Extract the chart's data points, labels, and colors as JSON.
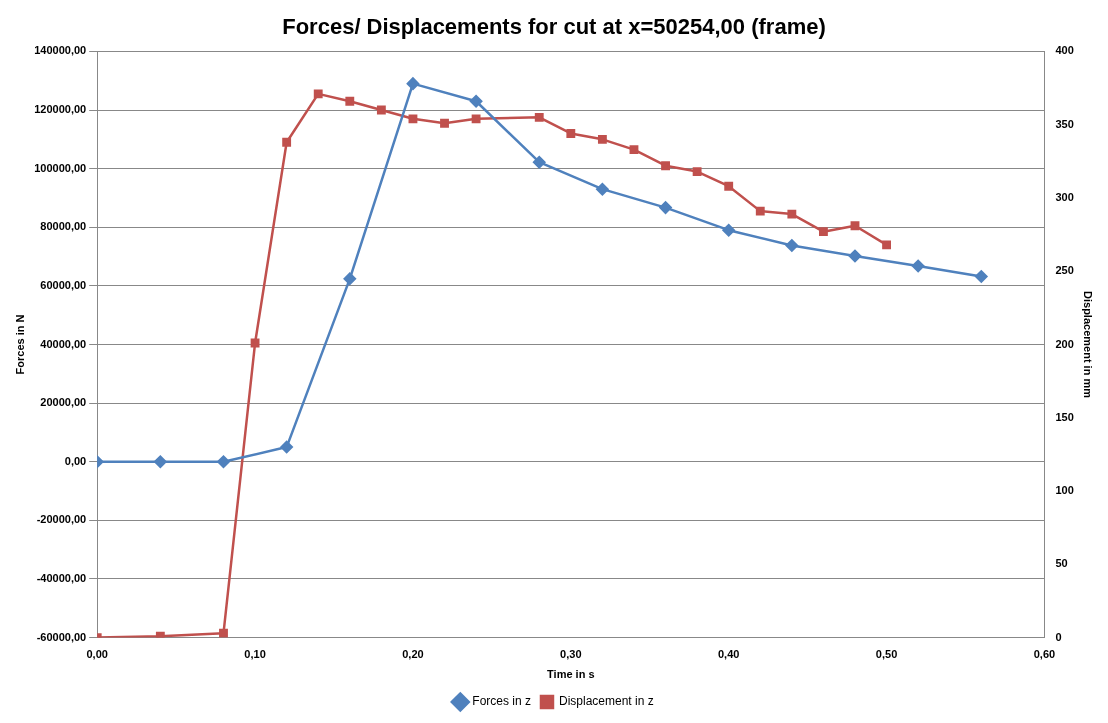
{
  "chart_data": {
    "type": "line",
    "title": "Forces/ Displacements for cut at x=50254,00 (frame)",
    "xlabel": "Time in s",
    "ylabel": "Forces in N",
    "y2label": "Displacement in mm",
    "xlim": [
      0,
      0.6
    ],
    "xticks": [
      {
        "value": 0,
        "label": "0,00"
      },
      {
        "value": 0.1,
        "label": "0,10"
      },
      {
        "value": 0.2,
        "label": "0,20"
      },
      {
        "value": 0.3,
        "label": "0,30"
      },
      {
        "value": 0.4,
        "label": "0,40"
      },
      {
        "value": 0.5,
        "label": "0,50"
      },
      {
        "value": 0.6,
        "label": "0,60"
      }
    ],
    "ylim": [
      -60000,
      140000
    ],
    "yticks": [
      {
        "value": -60000,
        "label": "-60000,00"
      },
      {
        "value": -40000,
        "label": "-40000,00"
      },
      {
        "value": -20000,
        "label": "-20000,00"
      },
      {
        "value": 0,
        "label": "0,00"
      },
      {
        "value": 20000,
        "label": "20000,00"
      },
      {
        "value": 40000,
        "label": "40000,00"
      },
      {
        "value": 60000,
        "label": "60000,00"
      },
      {
        "value": 80000,
        "label": "80000,00"
      },
      {
        "value": 100000,
        "label": "100000,00"
      },
      {
        "value": 120000,
        "label": "120000,00"
      },
      {
        "value": 140000,
        "label": "140000,00"
      }
    ],
    "y2lim": [
      0,
      400
    ],
    "y2ticks": [
      0,
      50,
      100,
      150,
      200,
      250,
      300,
      350,
      400
    ],
    "grid": "y",
    "legend": "bottom",
    "series": [
      {
        "name": "Forces in z",
        "color": "#4f81bd",
        "marker": "diamond",
        "x": [
          0,
          0.04,
          0.08,
          0.12,
          0.16,
          0.2,
          0.24,
          0.28,
          0.32,
          0.36,
          0.4,
          0.44,
          0.48,
          0.52,
          0.56
        ],
        "values": [
          0,
          0,
          0,
          5000,
          62400,
          129000,
          123000,
          102200,
          93000,
          86700,
          79000,
          73800,
          70200,
          66800,
          63200
        ]
      },
      {
        "name": "Displacement in z",
        "color": "#c0504d",
        "marker": "square",
        "axis": "y2",
        "x": [
          0,
          0.04,
          0.08,
          0.1,
          0.12,
          0.14,
          0.16,
          0.18,
          0.2,
          0.22,
          0.24,
          0.28,
          0.3,
          0.32,
          0.34,
          0.36,
          0.38,
          0.4,
          0.42,
          0.44,
          0.46,
          0.48,
          0.5
        ],
        "values": [
          0,
          1,
          3,
          201,
          338,
          371,
          366,
          360,
          354,
          351,
          354,
          355,
          344,
          340,
          333,
          322,
          318,
          308,
          291,
          289,
          277,
          281,
          268
        ]
      }
    ]
  }
}
